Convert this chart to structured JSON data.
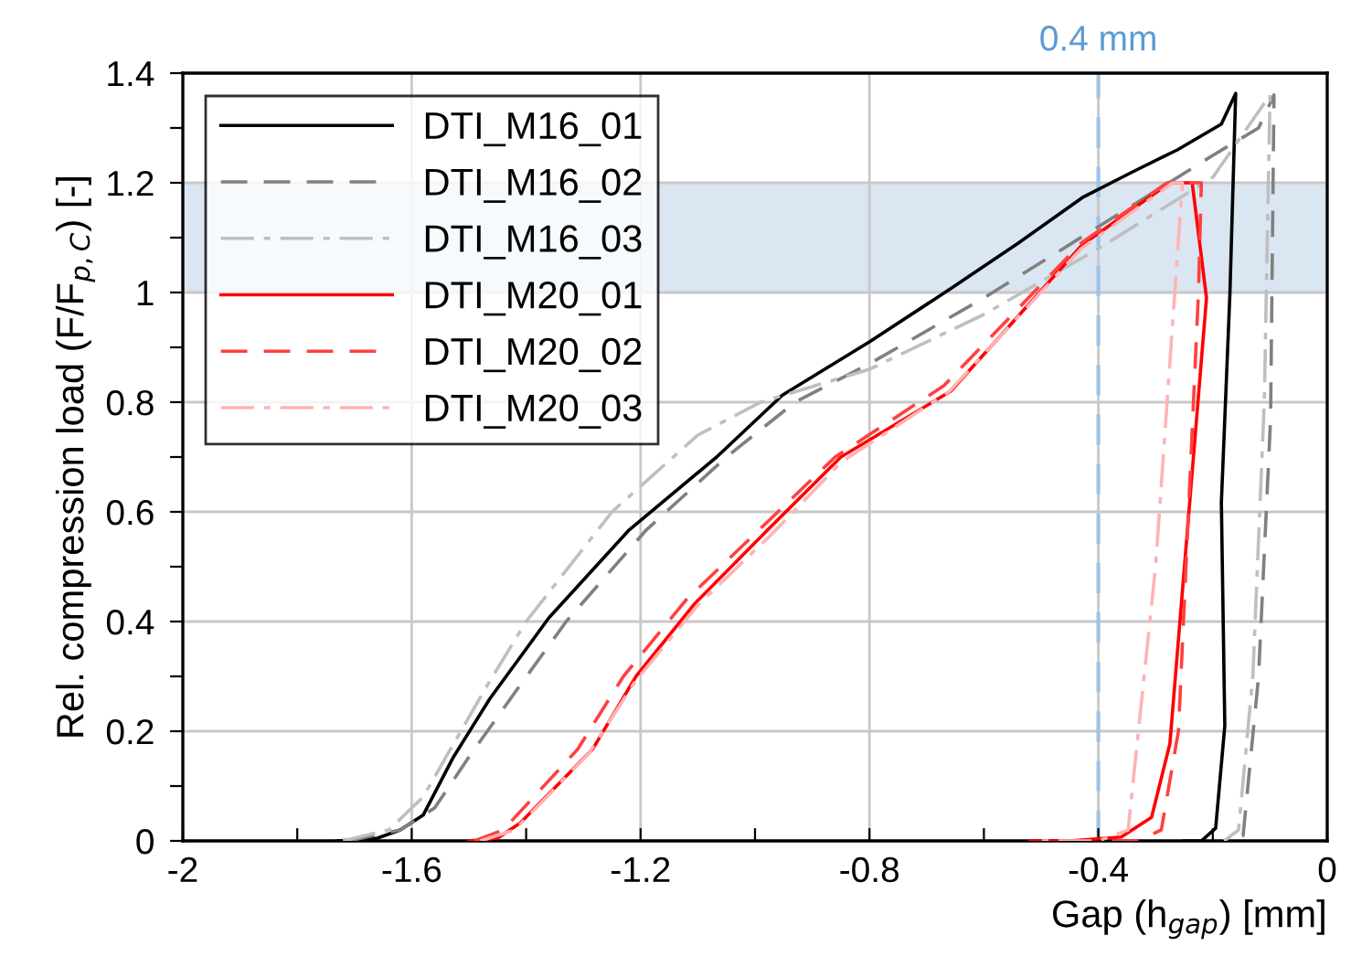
{
  "chart_data": {
    "type": "line",
    "xlabel": "Gap (h$_{gap}$) [mm]",
    "ylabel": "Rel. compression load (F/F$_{p,C}$) [-]",
    "xlim": [
      -2,
      0
    ],
    "ylim": [
      0,
      1.4
    ],
    "xticks": [
      -2,
      {
        "value": -1.8,
        "label": null
      },
      -1.6,
      {
        "value": -1.4,
        "label": null
      },
      -1.2,
      {
        "value": -1.0,
        "label": null
      },
      -0.8,
      {
        "value": -0.6,
        "label": null
      },
      -0.4,
      {
        "value": -0.2,
        "label": null
      },
      0
    ],
    "yticks": [
      0,
      {
        "value": 0.1,
        "label": null
      },
      0.2,
      {
        "value": 0.3,
        "label": null
      },
      0.4,
      {
        "value": 0.5,
        "label": null
      },
      0.6,
      {
        "value": 0.7,
        "label": null
      },
      0.8,
      {
        "value": 0.9,
        "label": null
      },
      1,
      {
        "value": 1.1,
        "label": null
      },
      1.2,
      {
        "value": 1.3,
        "label": null
      },
      1.4
    ],
    "grid": true,
    "legend": "top left",
    "bands": [
      {
        "axis": "y",
        "from": 1.0,
        "to": 1.2,
        "color": "#dae6f2"
      }
    ],
    "ref_lines": [
      {
        "axis": "x",
        "value": -0.4,
        "label": "0.4 mm",
        "color": "#9dc3e6",
        "line_style": "dashed"
      }
    ],
    "series": [
      {
        "name": "DTI_M16_01",
        "color": "#000000",
        "line_style": "solid",
        "x": [
          -1.73,
          -1.66,
          -1.62,
          -1.58,
          -1.527,
          -1.463,
          -1.36,
          -1.22,
          -1.067,
          -0.952,
          -0.8,
          -0.658,
          -0.54,
          -0.428,
          -0.34,
          -0.262,
          -0.185,
          -0.16,
          -0.17,
          -0.185,
          -0.179,
          -0.195,
          -0.22,
          -0.25
        ],
        "values": [
          0,
          0.005,
          0.02,
          0.047,
          0.153,
          0.26,
          0.407,
          0.567,
          0.7,
          0.813,
          0.91,
          1.007,
          1.09,
          1.173,
          1.22,
          1.26,
          1.307,
          1.363,
          1.0,
          0.617,
          0.21,
          0.023,
          0,
          0
        ]
      },
      {
        "name": "DTI_M16_02",
        "color": "#808080",
        "line_style": "dashed",
        "x": [
          -1.71,
          -1.62,
          -1.56,
          -1.5,
          -1.42,
          -1.33,
          -1.19,
          -1.05,
          -0.93,
          -0.8,
          -0.6,
          -0.4,
          -0.2,
          -0.12,
          -0.093,
          -0.099,
          -0.12,
          -0.147,
          -0.17
        ],
        "values": [
          0,
          0.02,
          0.06,
          0.153,
          0.27,
          0.4,
          0.567,
          0.7,
          0.8,
          0.87,
          0.99,
          1.12,
          1.25,
          1.3,
          1.36,
          0.77,
          0.3,
          0.01,
          0
        ]
      },
      {
        "name": "DTI_M16_03",
        "color": "#bfbfbf",
        "line_style": "dashdot",
        "x": [
          -1.72,
          -1.64,
          -1.58,
          -1.54,
          -1.47,
          -1.4,
          -1.25,
          -1.1,
          -0.99,
          -0.8,
          -0.6,
          -0.4,
          -0.2,
          -0.1,
          -0.11,
          -0.13,
          -0.155,
          -0.18
        ],
        "values": [
          0,
          0.02,
          0.08,
          0.153,
          0.28,
          0.4,
          0.6,
          0.74,
          0.8,
          0.86,
          0.96,
          1.08,
          1.21,
          1.36,
          0.8,
          0.3,
          0.02,
          0
        ]
      },
      {
        "name": "DTI_M20_01",
        "color": "#ff0000",
        "line_style": "solid",
        "x": [
          -1.5,
          -1.45,
          -1.41,
          -1.284,
          -1.208,
          -1.105,
          -0.978,
          -0.85,
          -0.658,
          -0.428,
          -0.275,
          -0.236,
          -0.211,
          -0.275,
          -0.307,
          -0.36,
          -0.45,
          -0.52
        ],
        "values": [
          0,
          0.005,
          0.033,
          0.167,
          0.3,
          0.433,
          0.567,
          0.7,
          0.82,
          1.087,
          1.2,
          1.2,
          0.99,
          0.177,
          0.043,
          0.007,
          0,
          0
        ]
      },
      {
        "name": "DTI_M20_02",
        "color": "#ff4040",
        "line_style": "dashed",
        "x": [
          -1.49,
          -1.44,
          -1.31,
          -1.23,
          -1.12,
          -0.99,
          -0.86,
          -0.67,
          -0.43,
          -0.28,
          -0.22,
          -0.225,
          -0.26,
          -0.29,
          -0.33,
          -0.4
        ],
        "values": [
          0,
          0.02,
          0.167,
          0.3,
          0.44,
          0.57,
          0.7,
          0.83,
          1.09,
          1.2,
          1.2,
          1.0,
          0.2,
          0.02,
          0,
          0
        ]
      },
      {
        "name": "DTI_M20_03",
        "color": "#ffb3b3",
        "line_style": "dashdot",
        "x": [
          -1.48,
          -1.42,
          -1.29,
          -1.21,
          -1.1,
          -0.97,
          -0.85,
          -0.66,
          -0.43,
          -0.27,
          -0.253,
          -0.3,
          -0.348,
          -0.4,
          -0.5
        ],
        "values": [
          0,
          0.02,
          0.16,
          0.29,
          0.43,
          0.56,
          0.69,
          0.82,
          1.08,
          1.2,
          1.2,
          0.5,
          0.02,
          0,
          0
        ]
      }
    ]
  }
}
